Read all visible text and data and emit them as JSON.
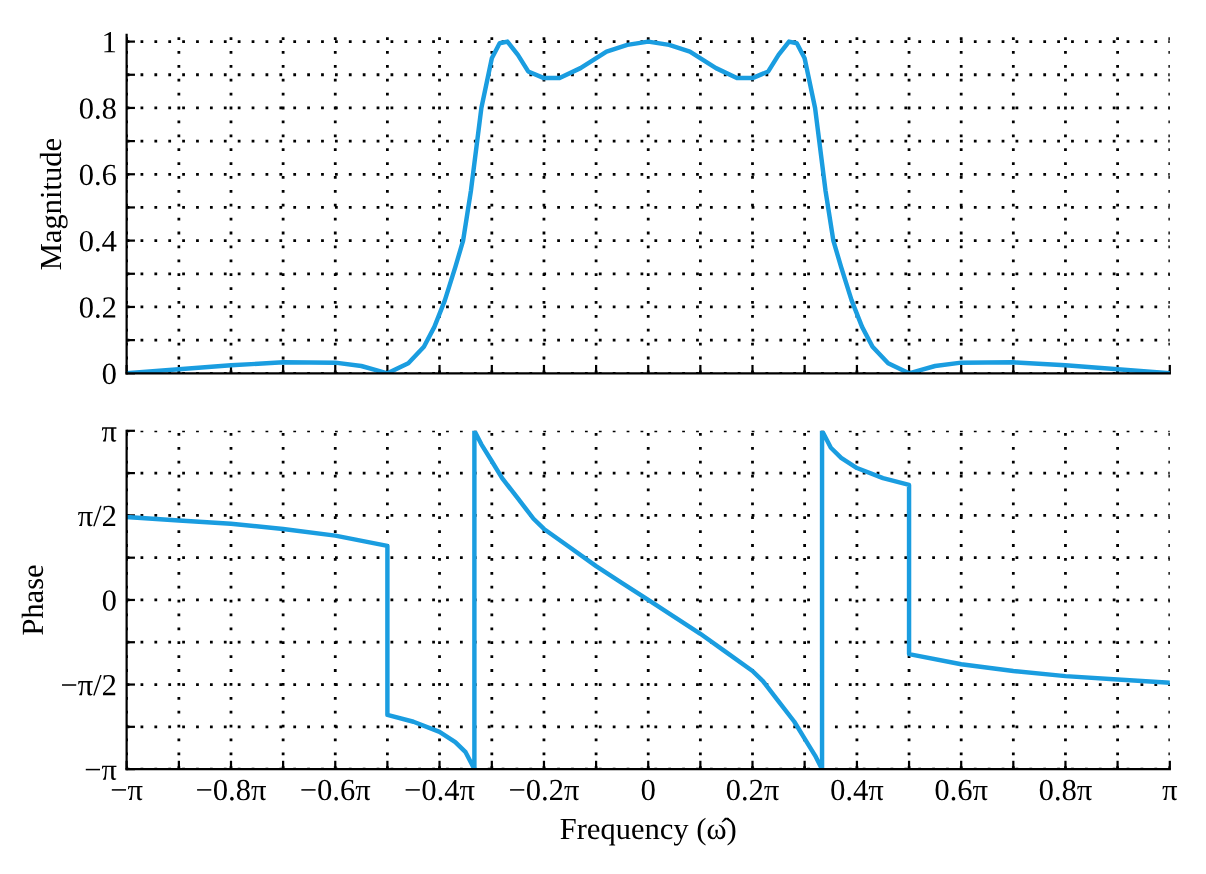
{
  "chart_data": [
    {
      "type": "line",
      "ylabel": "Magnitude",
      "xlim": [
        -3.1416,
        3.1416
      ],
      "ylim": [
        0,
        1.02
      ],
      "tick_labels": "y",
      "grid": true,
      "legend": false,
      "xticks": [
        {
          "value": -3.1416,
          "label": null
        },
        {
          "value": -2.827,
          "label": null
        },
        {
          "value": -2.513,
          "label": null
        },
        {
          "value": -2.199,
          "label": null
        },
        {
          "value": -1.885,
          "label": null
        },
        {
          "value": -1.571,
          "label": null
        },
        {
          "value": -1.257,
          "label": null
        },
        {
          "value": -0.942,
          "label": null
        },
        {
          "value": -0.628,
          "label": null
        },
        {
          "value": -0.314,
          "label": null
        },
        {
          "value": 0,
          "label": null
        },
        {
          "value": 0.314,
          "label": null
        },
        {
          "value": 0.628,
          "label": null
        },
        {
          "value": 0.942,
          "label": null
        },
        {
          "value": 1.257,
          "label": null
        },
        {
          "value": 1.571,
          "label": null
        },
        {
          "value": 1.885,
          "label": null
        },
        {
          "value": 2.199,
          "label": null
        },
        {
          "value": 2.513,
          "label": null
        },
        {
          "value": 2.827,
          "label": null
        },
        {
          "value": 3.1416,
          "label": null
        }
      ],
      "yticks": [
        0,
        {
          "value": 0.1,
          "label": null
        },
        0.2,
        {
          "value": 0.3,
          "label": null
        },
        0.4,
        {
          "value": 0.5,
          "label": null
        },
        0.6,
        {
          "value": 0.7,
          "label": null
        },
        0.8,
        {
          "value": 0.9,
          "label": null
        },
        1
      ],
      "series": [
        {
          "color": "#1a9de0",
          "x": [
            -3.1416,
            -2.827,
            -2.513,
            -2.199,
            -1.885,
            -1.728,
            -1.571,
            -1.445,
            -1.351,
            -1.288,
            -1.225,
            -1.162,
            -1.115,
            -1.068,
            -1.005,
            -0.942,
            -0.895,
            -0.848,
            -0.785,
            -0.723,
            -0.628,
            -0.534,
            -0.408,
            -0.251,
            -0.126,
            0,
            0.126,
            0.251,
            0.408,
            0.534,
            0.628,
            0.723,
            0.785,
            0.848,
            0.895,
            0.942,
            1.005,
            1.068,
            1.115,
            1.162,
            1.225,
            1.288,
            1.351,
            1.445,
            1.571,
            1.728,
            1.885,
            2.199,
            2.513,
            2.827,
            3.1416
          ],
          "values": [
            0,
            0.012,
            0.024,
            0.033,
            0.032,
            0.022,
            0,
            0.03,
            0.08,
            0.14,
            0.22,
            0.32,
            0.4,
            0.55,
            0.8,
            0.95,
            0.995,
            1.0,
            0.96,
            0.91,
            0.89,
            0.89,
            0.92,
            0.97,
            0.99,
            1.0,
            0.99,
            0.97,
            0.92,
            0.89,
            0.89,
            0.91,
            0.96,
            1.0,
            0.995,
            0.95,
            0.8,
            0.55,
            0.4,
            0.32,
            0.22,
            0.14,
            0.08,
            0.03,
            0,
            0.022,
            0.032,
            0.033,
            0.024,
            0.012,
            0
          ]
        }
      ]
    },
    {
      "type": "line",
      "ylabel": "Phase",
      "xlabel": "Frequency (ω̂)",
      "xlim": [
        -3.1416,
        3.1416
      ],
      "ylim": [
        -3.1416,
        3.1416
      ],
      "grid": true,
      "legend": false,
      "xticks": [
        {
          "value": -3.1416,
          "label": "−π"
        },
        {
          "value": -2.827,
          "label": null
        },
        {
          "value": -2.513,
          "label": "−0.8π"
        },
        {
          "value": -2.199,
          "label": null
        },
        {
          "value": -1.885,
          "label": "−0.6π"
        },
        {
          "value": -1.571,
          "label": null
        },
        {
          "value": -1.257,
          "label": "−0.4π"
        },
        {
          "value": -0.942,
          "label": null
        },
        {
          "value": -0.628,
          "label": "−0.2π"
        },
        {
          "value": -0.314,
          "label": null
        },
        0,
        {
          "value": 0.314,
          "label": null
        },
        {
          "value": 0.628,
          "label": "0.2π"
        },
        {
          "value": 0.942,
          "label": null
        },
        {
          "value": 1.257,
          "label": "0.4π"
        },
        {
          "value": 1.571,
          "label": null
        },
        {
          "value": 1.885,
          "label": "0.6π"
        },
        {
          "value": 2.199,
          "label": null
        },
        {
          "value": 2.513,
          "label": "0.8π"
        },
        {
          "value": 2.827,
          "label": null
        },
        {
          "value": 3.1416,
          "label": "π"
        }
      ],
      "yticks": [
        {
          "value": -3.1416,
          "label": "−π"
        },
        {
          "value": -2.356,
          "label": null
        },
        {
          "value": -1.571,
          "label": "−π/2"
        },
        {
          "value": -0.785,
          "label": null
        },
        0,
        {
          "value": 0.785,
          "label": null
        },
        {
          "value": 1.571,
          "label": "π/2"
        },
        {
          "value": 2.356,
          "label": null
        },
        {
          "value": 3.1416,
          "label": "π"
        }
      ],
      "series": [
        {
          "color": "#1a9de0",
          "x": [
            -3.1416,
            -2.827,
            -2.513,
            -2.199,
            -1.885,
            -1.571,
            -1.571,
            -1.414,
            -1.257,
            -1.162,
            -1.1,
            -1.047,
            -1.047,
            -1.005,
            -0.942,
            -0.88,
            -0.785,
            -0.691,
            -0.628,
            -0.471,
            -0.314,
            -0.157,
            0,
            0.157,
            0.314,
            0.471,
            0.628,
            0.691,
            0.785,
            0.88,
            0.942,
            1.005,
            1.047,
            1.047,
            1.1,
            1.162,
            1.257,
            1.414,
            1.571,
            1.571,
            1.885,
            2.199,
            2.513,
            2.827,
            3.1416
          ],
          "values": [
            1.539,
            1.477,
            1.414,
            1.319,
            1.194,
            1.005,
            -2.136,
            -2.262,
            -2.45,
            -2.639,
            -2.827,
            -3.1416,
            3.1416,
            2.89,
            2.576,
            2.262,
            1.885,
            1.508,
            1.319,
            0.974,
            0.628,
            0.314,
            0,
            -0.314,
            -0.628,
            -0.974,
            -1.319,
            -1.508,
            -1.885,
            -2.262,
            -2.576,
            -2.89,
            -3.1416,
            3.1416,
            2.827,
            2.639,
            2.45,
            2.262,
            2.136,
            -1.005,
            -1.194,
            -1.319,
            -1.414,
            -1.477,
            -1.539
          ]
        }
      ]
    }
  ]
}
